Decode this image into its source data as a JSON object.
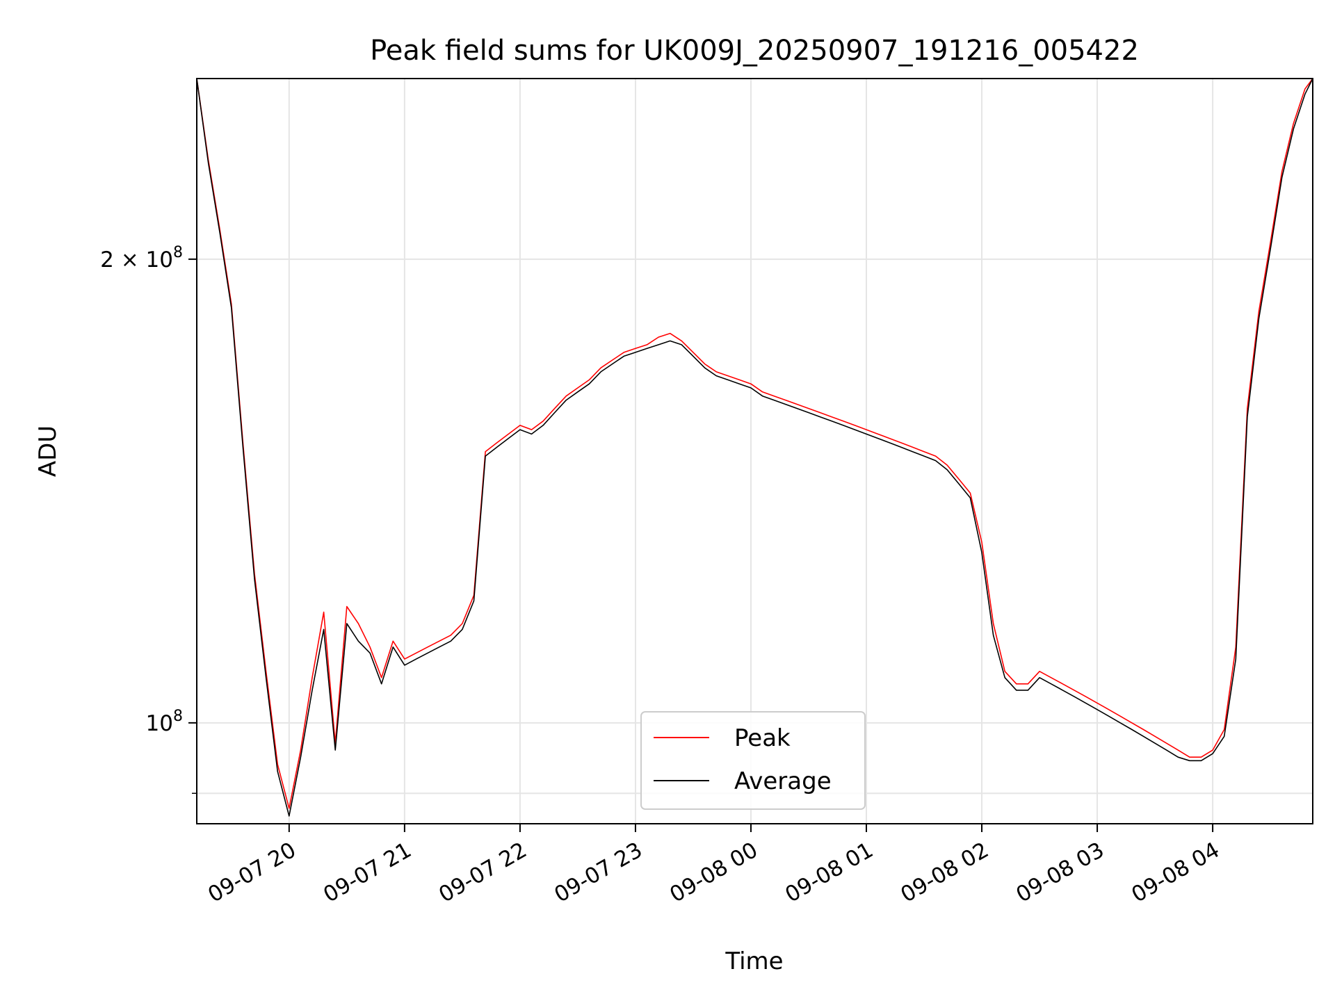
{
  "chart_data": {
    "type": "line",
    "title": "Peak field sums for UK009J_20250907_191216_005422",
    "xlabel": "Time",
    "ylabel": "ADU",
    "yscale": "log",
    "ylim": [
      86000000,
      262000000
    ],
    "xlim": [
      "2025-09-07 19:12",
      "2025-09-08 04:52"
    ],
    "x_ticks": [
      {
        "value": "2025-09-07 20:00",
        "label": "09-07 20"
      },
      {
        "value": "2025-09-07 21:00",
        "label": "09-07 21"
      },
      {
        "value": "2025-09-07 22:00",
        "label": "09-07 22"
      },
      {
        "value": "2025-09-07 23:00",
        "label": "09-07 23"
      },
      {
        "value": "2025-09-08 00:00",
        "label": "09-08 00"
      },
      {
        "value": "2025-09-08 01:00",
        "label": "09-08 01"
      },
      {
        "value": "2025-09-08 02:00",
        "label": "09-08 02"
      },
      {
        "value": "2025-09-08 03:00",
        "label": "09-08 03"
      },
      {
        "value": "2025-09-08 04:00",
        "label": "09-08 04"
      }
    ],
    "y_ticks": [
      {
        "value": 100000000,
        "label_base": "10",
        "label_exp": "8",
        "label_prefix": ""
      },
      {
        "value": 200000000,
        "label_base": "10",
        "label_exp": "8",
        "label_prefix": "2 × "
      }
    ],
    "y_minor_ticks": [
      90000000
    ],
    "grid": true,
    "legend_position": "lower-center",
    "series": [
      {
        "name": "Peak",
        "color": "#ff0000",
        "x": [
          "2025-09-07 19:12",
          "2025-09-07 19:18",
          "2025-09-07 19:24",
          "2025-09-07 19:30",
          "2025-09-07 19:36",
          "2025-09-07 19:42",
          "2025-09-07 19:48",
          "2025-09-07 19:54",
          "2025-09-07 20:00",
          "2025-09-07 20:06",
          "2025-09-07 20:12",
          "2025-09-07 20:18",
          "2025-09-07 20:24",
          "2025-09-07 20:30",
          "2025-09-07 20:36",
          "2025-09-07 20:42",
          "2025-09-07 20:48",
          "2025-09-07 20:54",
          "2025-09-07 21:00",
          "2025-09-07 21:06",
          "2025-09-07 21:12",
          "2025-09-07 21:18",
          "2025-09-07 21:24",
          "2025-09-07 21:30",
          "2025-09-07 21:36",
          "2025-09-07 21:42",
          "2025-09-07 21:48",
          "2025-09-07 21:54",
          "2025-09-07 22:00",
          "2025-09-07 22:06",
          "2025-09-07 22:12",
          "2025-09-07 22:18",
          "2025-09-07 22:24",
          "2025-09-07 22:30",
          "2025-09-07 22:36",
          "2025-09-07 22:42",
          "2025-09-07 22:48",
          "2025-09-07 22:54",
          "2025-09-07 23:00",
          "2025-09-07 23:06",
          "2025-09-07 23:12",
          "2025-09-07 23:18",
          "2025-09-07 23:24",
          "2025-09-07 23:30",
          "2025-09-07 23:36",
          "2025-09-07 23:42",
          "2025-09-07 23:48",
          "2025-09-07 23:54",
          "2025-09-08 00:00",
          "2025-09-08 00:06",
          "2025-09-08 00:12",
          "2025-09-08 00:18",
          "2025-09-08 00:24",
          "2025-09-08 00:30",
          "2025-09-08 00:36",
          "2025-09-08 00:42",
          "2025-09-08 00:48",
          "2025-09-08 00:54",
          "2025-09-08 01:00",
          "2025-09-08 01:06",
          "2025-09-08 01:12",
          "2025-09-08 01:18",
          "2025-09-08 01:24",
          "2025-09-08 01:30",
          "2025-09-08 01:36",
          "2025-09-08 01:42",
          "2025-09-08 01:48",
          "2025-09-08 01:54",
          "2025-09-08 02:00",
          "2025-09-08 02:06",
          "2025-09-08 02:12",
          "2025-09-08 02:18",
          "2025-09-08 02:24",
          "2025-09-08 02:30",
          "2025-09-08 02:36",
          "2025-09-08 02:42",
          "2025-09-08 02:48",
          "2025-09-08 02:54",
          "2025-09-08 03:00",
          "2025-09-08 03:06",
          "2025-09-08 03:12",
          "2025-09-08 03:18",
          "2025-09-08 03:24",
          "2025-09-08 03:30",
          "2025-09-08 03:36",
          "2025-09-08 03:42",
          "2025-09-08 03:48",
          "2025-09-08 03:54",
          "2025-09-08 04:00",
          "2025-09-08 04:06",
          "2025-09-08 04:12",
          "2025-09-08 04:18",
          "2025-09-08 04:24",
          "2025-09-08 04:30",
          "2025-09-08 04:36",
          "2025-09-08 04:42",
          "2025-09-08 04:48",
          "2025-09-08 04:52"
        ],
        "values": [
          263000000,
          232000000,
          209000000,
          187000000,
          152000000,
          125000000,
          108000000,
          94000000,
          88000000,
          96000000,
          107000000,
          118000000,
          97000000,
          119000000,
          116000000,
          112000000,
          107000000,
          113000000,
          110000000,
          111000000,
          112000000,
          113000000,
          114000000,
          116000000,
          121000000,
          150000000,
          152000000,
          154000000,
          156000000,
          155000000,
          157000000,
          160000000,
          163000000,
          165000000,
          167000000,
          170000000,
          172000000,
          174000000,
          175000000,
          176000000,
          178000000,
          179000000,
          177000000,
          174000000,
          171000000,
          169000000,
          168000000,
          167000000,
          166000000,
          164000000,
          163000000,
          162000000,
          161000000,
          160000000,
          159000000,
          158000000,
          157000000,
          156000000,
          155000000,
          154000000,
          153000000,
          152000000,
          151000000,
          150000000,
          149000000,
          147000000,
          144000000,
          141000000,
          131000000,
          116000000,
          108000000,
          106000000,
          106000000,
          108000000,
          107000000,
          106000000,
          105000000,
          104000000,
          103000000,
          102000000,
          101000000,
          100000000,
          99000000,
          98000000,
          97000000,
          96000000,
          95000000,
          95000000,
          96000000,
          99000000,
          112000000,
          160000000,
          185000000,
          205000000,
          228000000,
          245000000,
          258000000,
          265000000
        ]
      },
      {
        "name": "Average",
        "color": "#000000",
        "x": [
          "2025-09-07 19:12",
          "2025-09-07 19:18",
          "2025-09-07 19:24",
          "2025-09-07 19:30",
          "2025-09-07 19:36",
          "2025-09-07 19:42",
          "2025-09-07 19:48",
          "2025-09-07 19:54",
          "2025-09-07 20:00",
          "2025-09-07 20:06",
          "2025-09-07 20:12",
          "2025-09-07 20:18",
          "2025-09-07 20:24",
          "2025-09-07 20:30",
          "2025-09-07 20:36",
          "2025-09-07 20:42",
          "2025-09-07 20:48",
          "2025-09-07 20:54",
          "2025-09-07 21:00",
          "2025-09-07 21:06",
          "2025-09-07 21:12",
          "2025-09-07 21:18",
          "2025-09-07 21:24",
          "2025-09-07 21:30",
          "2025-09-07 21:36",
          "2025-09-07 21:42",
          "2025-09-07 21:48",
          "2025-09-07 21:54",
          "2025-09-07 22:00",
          "2025-09-07 22:06",
          "2025-09-07 22:12",
          "2025-09-07 22:18",
          "2025-09-07 22:24",
          "2025-09-07 22:30",
          "2025-09-07 22:36",
          "2025-09-07 22:42",
          "2025-09-07 22:48",
          "2025-09-07 22:54",
          "2025-09-07 23:00",
          "2025-09-07 23:06",
          "2025-09-07 23:12",
          "2025-09-07 23:18",
          "2025-09-07 23:24",
          "2025-09-07 23:30",
          "2025-09-07 23:36",
          "2025-09-07 23:42",
          "2025-09-07 23:48",
          "2025-09-07 23:54",
          "2025-09-08 00:00",
          "2025-09-08 00:06",
          "2025-09-08 00:12",
          "2025-09-08 00:18",
          "2025-09-08 00:24",
          "2025-09-08 00:30",
          "2025-09-08 00:36",
          "2025-09-08 00:42",
          "2025-09-08 00:48",
          "2025-09-08 00:54",
          "2025-09-08 01:00",
          "2025-09-08 01:06",
          "2025-09-08 01:12",
          "2025-09-08 01:18",
          "2025-09-08 01:24",
          "2025-09-08 01:30",
          "2025-09-08 01:36",
          "2025-09-08 01:42",
          "2025-09-08 01:48",
          "2025-09-08 01:54",
          "2025-09-08 02:00",
          "2025-09-08 02:06",
          "2025-09-08 02:12",
          "2025-09-08 02:18",
          "2025-09-08 02:24",
          "2025-09-08 02:30",
          "2025-09-08 02:36",
          "2025-09-08 02:42",
          "2025-09-08 02:48",
          "2025-09-08 02:54",
          "2025-09-08 03:00",
          "2025-09-08 03:06",
          "2025-09-08 03:12",
          "2025-09-08 03:18",
          "2025-09-08 03:24",
          "2025-09-08 03:30",
          "2025-09-08 03:36",
          "2025-09-08 03:42",
          "2025-09-08 03:48",
          "2025-09-08 03:54",
          "2025-09-08 04:00",
          "2025-09-08 04:06",
          "2025-09-08 04:12",
          "2025-09-08 04:18",
          "2025-09-08 04:24",
          "2025-09-08 04:30",
          "2025-09-08 04:36",
          "2025-09-08 04:42",
          "2025-09-08 04:48",
          "2025-09-08 04:52"
        ],
        "values": [
          262000000,
          231000000,
          208000000,
          186000000,
          151000000,
          124000000,
          107000000,
          93000000,
          87000000,
          95000000,
          105000000,
          115000000,
          96000000,
          116000000,
          113000000,
          111000000,
          106000000,
          112000000,
          109000000,
          110000000,
          111000000,
          112000000,
          113000000,
          115000000,
          120000000,
          149000000,
          151000000,
          153000000,
          155000000,
          154000000,
          156000000,
          159000000,
          162000000,
          164000000,
          166000000,
          169000000,
          171000000,
          173000000,
          174000000,
          175000000,
          176000000,
          177000000,
          176000000,
          173000000,
          170000000,
          168000000,
          167000000,
          166000000,
          165000000,
          163000000,
          162000000,
          161000000,
          160000000,
          159000000,
          158000000,
          157000000,
          156000000,
          155000000,
          154000000,
          153000000,
          152000000,
          151000000,
          150000000,
          149000000,
          148000000,
          146000000,
          143000000,
          140000000,
          129000000,
          114000000,
          107000000,
          105000000,
          105000000,
          107000000,
          106000000,
          105000000,
          104000000,
          103000000,
          102000000,
          101000000,
          100000000,
          99000000,
          98000000,
          97000000,
          96000000,
          95000000,
          94500000,
          94500000,
          95500000,
          98000000,
          110000000,
          158000000,
          183000000,
          203000000,
          226000000,
          243000000,
          256000000,
          263000000
        ]
      }
    ]
  }
}
